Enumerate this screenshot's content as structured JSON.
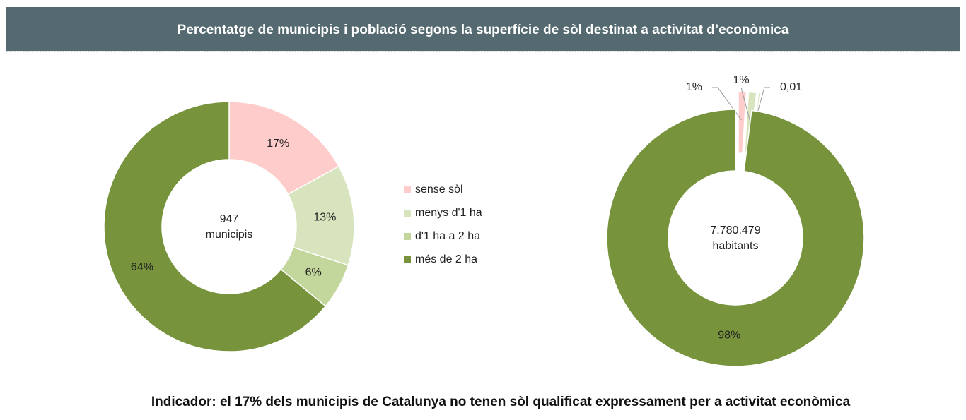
{
  "title": "Percentatge  de municipis i població segons la superfície de sòl destinat a activitat d’econòmica",
  "indicator": "Indicador: el 17% dels municipis de Catalunya no tenen sòl qualificat expressament per a activitat econòmica",
  "chart_data": [
    {
      "type": "donut",
      "categories": [
        "sense sòl",
        "menys d'1 ha",
        "d'1 ha a 2 ha",
        "més de 2 ha"
      ],
      "colors": [
        "#ffcccc",
        "#d7e4bd",
        "#c3d69b",
        "#77933c"
      ],
      "values": [
        17,
        13,
        6,
        64
      ],
      "value_labels": [
        "17%",
        "13%",
        "6%",
        "64%"
      ],
      "center_text": [
        "947",
        "municipis"
      ]
    },
    {
      "type": "donut",
      "values": [
        1,
        1,
        0.01,
        98
      ],
      "value_labels": [
        "1%",
        "1%",
        "0,01",
        "98%"
      ],
      "center_text": [
        "7.780.479",
        "habitants"
      ]
    }
  ]
}
